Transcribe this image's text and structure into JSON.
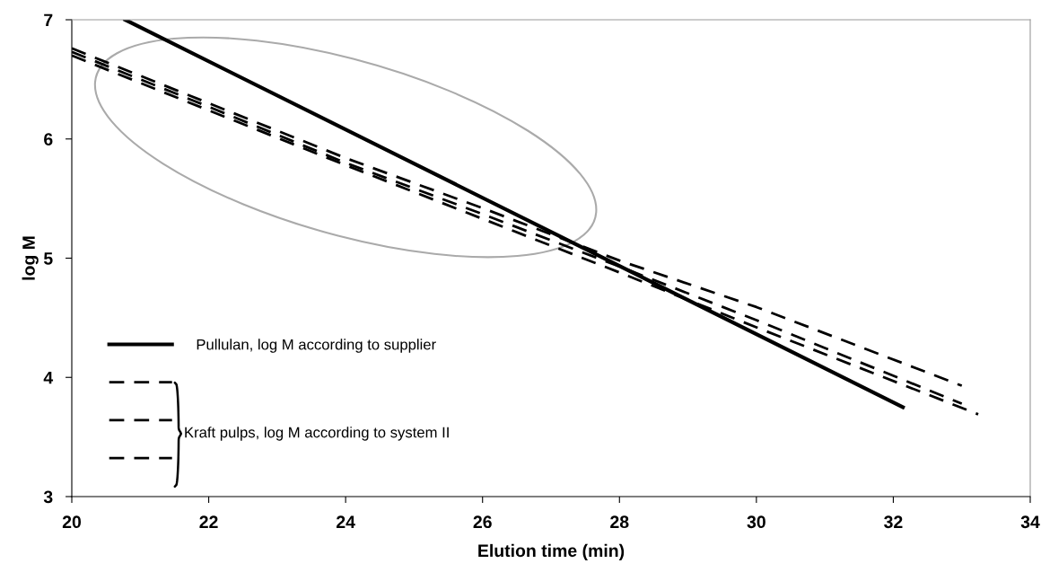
{
  "chart_data": {
    "type": "line",
    "xlabel": "Elution time (min)",
    "ylabel": "log M",
    "xlim": [
      20,
      34
    ],
    "xticks": [
      20,
      22,
      24,
      26,
      28,
      30,
      32,
      34
    ],
    "ylim": [
      3,
      7
    ],
    "yticks": [
      3,
      4,
      5,
      6,
      7
    ],
    "grid": false,
    "legend": "bottom left",
    "marker": "none",
    "annotations": [
      "Kraft pulps, log M according to system II"
    ],
    "series": [
      {
        "name": "Pullulan, log M according to supplier",
        "color": "#000000",
        "line_style": "solid",
        "x": [
          20.78,
          32.14
        ],
        "values": [
          7,
          3.75
        ]
      },
      {
        "color": "#000000",
        "line_style": "dashed",
        "x": [
          20,
          22,
          24,
          26,
          28,
          30,
          33
        ],
        "values": [
          6.76,
          6.3,
          5.84,
          5.42,
          4.98,
          4.59,
          3.93
        ]
      },
      {
        "color": "#000000",
        "line_style": "dashed",
        "x": [
          20,
          22,
          24,
          26,
          28,
          30,
          33
        ],
        "values": [
          6.73,
          6.27,
          5.8,
          5.37,
          4.93,
          4.48,
          3.78
        ]
      },
      {
        "color": "#000000",
        "line_style": "dashed",
        "x": [
          20,
          22,
          24,
          26,
          28,
          30,
          33.24
        ],
        "values": [
          6.7,
          6.24,
          5.78,
          5.33,
          4.88,
          4.42,
          3.69
        ]
      }
    ]
  }
}
